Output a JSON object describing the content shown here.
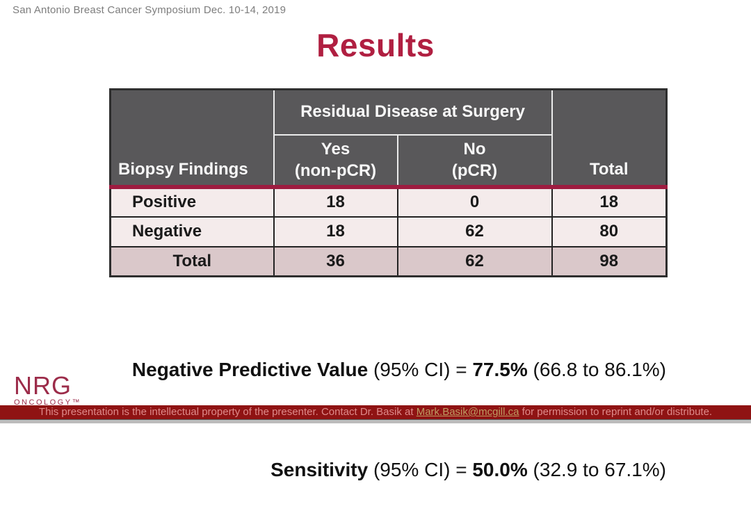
{
  "header": {
    "symposium": "San Antonio Breast Cancer Symposium Dec. 10-14, 2019"
  },
  "title": "Results",
  "table": {
    "corner_header": "Biopsy Findings",
    "group_header": "Residual Disease at Surgery",
    "total_header": "Total",
    "col_headers": [
      {
        "line1": "Yes",
        "line2": "(non-pCR)"
      },
      {
        "line1": "No",
        "line2": "(pCR)"
      }
    ],
    "rows": [
      {
        "label": "Positive",
        "yes": "18",
        "no": "0",
        "total": "18"
      },
      {
        "label": "Negative",
        "yes": "18",
        "no": "62",
        "total": "80"
      },
      {
        "label": "Total",
        "yes": "36",
        "no": "62",
        "total": "98"
      }
    ]
  },
  "stats": [
    {
      "label": "Negative Predictive Value",
      "mid": " (95% CI) = ",
      "value": "77.5%",
      "range": " (66.8 to 86.1%)"
    },
    {
      "label": "Sensitivity",
      "mid": " (95% CI) = ",
      "value": "50.0%",
      "range": " (32.9 to 67.1%)"
    }
  ],
  "logo": {
    "name": "NRG",
    "subtitle": "ONCOLOGY™"
  },
  "footer": {
    "text_before": "This presentation is the intellectual property of the presenter. Contact Dr. Basik at ",
    "link": "Mark.Basik@mcgill.ca",
    "text_after": " for permission to reprint and/or distribute."
  },
  "colors": {
    "accent_maroon": "#9E1C40",
    "title_red": "#B01F41",
    "table_header_gray": "#59585A",
    "row_light_pink": "#F4EBEB",
    "row_total_mauve": "#DAC8CA",
    "footer_bg": "#8F1313",
    "footer_text": "#DE8A8A",
    "footer_link": "#BE9C62"
  }
}
